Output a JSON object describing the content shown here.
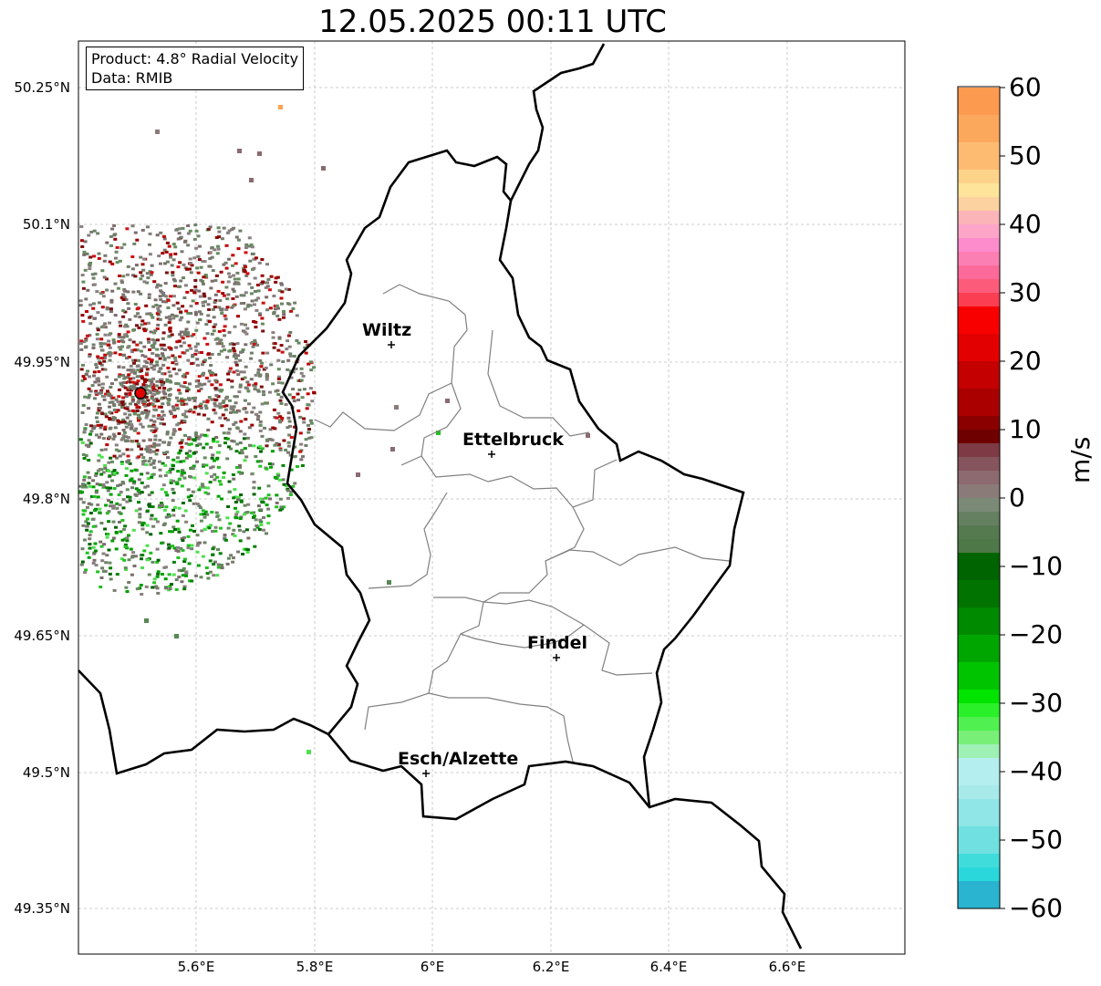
{
  "title": "12.05.2025 00:11 UTC",
  "info": {
    "product": "Product: 4.8° Radial Velocity",
    "data_source": "Data: RMIB"
  },
  "lat_ticks": [
    "50.25°N",
    "50.1°N",
    "49.95°N",
    "49.8°N",
    "49.65°N",
    "49.5°N",
    "49.35°N"
  ],
  "lon_ticks": [
    "5.6°E",
    "5.8°E",
    "6°E",
    "6.2°E",
    "6.4°E",
    "6.6°E"
  ],
  "colorbar": {
    "label": "m/s",
    "ticks": [
      "60",
      "50",
      "40",
      "30",
      "20",
      "10",
      "0",
      "−10",
      "−20",
      "−30",
      "−40",
      "−50",
      "−60"
    ],
    "min": -60,
    "max": 60
  },
  "cities": [
    {
      "name": "Wiltz"
    },
    {
      "name": "Ettelbruck"
    },
    {
      "name": "Findel"
    },
    {
      "name": "Esch/Alzette"
    }
  ]
}
